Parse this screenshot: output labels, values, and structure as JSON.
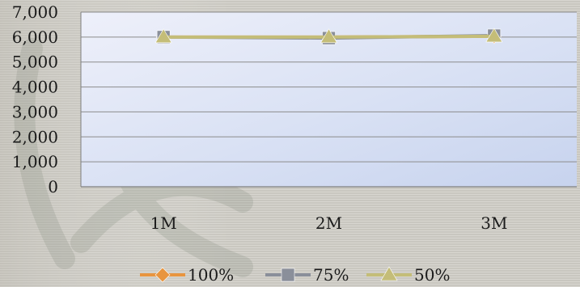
{
  "chart_data": {
    "type": "line",
    "title": "",
    "xlabel": "",
    "ylabel": "",
    "categories": [
      "1M",
      "2M",
      "3M"
    ],
    "ylim": [
      0,
      7000
    ],
    "yticks": [
      0,
      1000,
      2000,
      3000,
      4000,
      5000,
      6000,
      7000
    ],
    "ytick_labels": [
      "0",
      "1,000",
      "2,000",
      "3,000",
      "4,000",
      "5,000",
      "6,000",
      "7,000"
    ],
    "grid": true,
    "legend_position": "bottom",
    "series": [
      {
        "name": "100%",
        "values": [
          6000,
          6000,
          6030
        ],
        "color": "#e8953f",
        "marker": "diamond"
      },
      {
        "name": "75%",
        "values": [
          6000,
          5960,
          6060
        ],
        "color": "#8a8f9a",
        "marker": "square"
      },
      {
        "name": "50%",
        "values": [
          6000,
          6000,
          6030
        ],
        "color": "#c4bd78",
        "marker": "triangle"
      }
    ]
  }
}
